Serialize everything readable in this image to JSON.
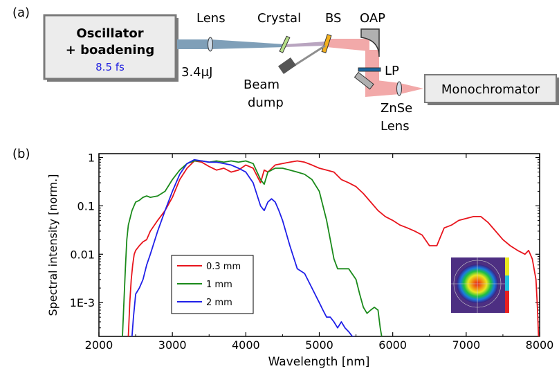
{
  "panel_a": {
    "panel_label": "(a)",
    "oscillator": {
      "line1": "Oscillator",
      "line2": "+ boadening",
      "pulse": "8.5 fs"
    },
    "lens_label": "Lens",
    "energy_label": "3.4μJ",
    "crystal_label": "Crystal",
    "bs_label": "BS",
    "oap_label": "OAP",
    "lp_label": "LP",
    "beam_dump": {
      "line1": "Beam",
      "line2": "dump"
    },
    "znse_lens": {
      "line1": "ZnSe",
      "line2": "Lens"
    },
    "monochromator_label": "Monochromator",
    "colors": {
      "pump_beam": "#7f9fb8",
      "mir_beam": "#f2a9a9",
      "crystal": "#b8e08a",
      "bs": "#f2b01e",
      "lp": "#1a66a0",
      "pulse_text": "#1f1fe0"
    }
  },
  "panel_b": {
    "panel_label": "(b)"
  },
  "chart_data": {
    "type": "line",
    "xlabel": "Wavelength [nm]",
    "ylabel": "Spectral intensity [norm.]",
    "xlim": [
      2000,
      8000
    ],
    "ylim": [
      0.0002,
      1.2
    ],
    "yscale": "log",
    "x_ticks": [
      2000,
      3000,
      4000,
      5000,
      6000,
      7000,
      8000
    ],
    "x_tick_labels": [
      "2000",
      "3000",
      "4000",
      "5000",
      "6000",
      "7000",
      "8000"
    ],
    "y_ticks": [
      1,
      0.1,
      0.01,
      0.001
    ],
    "y_tick_labels": [
      "1",
      "0.1",
      "0.01",
      "1E-3"
    ],
    "legend_position": "bottom-left",
    "inset": "beam-profile image (bottom-right)",
    "series": [
      {
        "name": "0.3 mm",
        "color": "#e8141c",
        "x": [
          2400,
          2420,
          2440,
          2460,
          2480,
          2500,
          2550,
          2600,
          2650,
          2700,
          2800,
          2900,
          3000,
          3100,
          3200,
          3300,
          3400,
          3500,
          3600,
          3700,
          3800,
          3900,
          4000,
          4100,
          4200,
          4250,
          4300,
          4400,
          4500,
          4600,
          4700,
          4800,
          4900,
          5000,
          5100,
          5200,
          5300,
          5400,
          5500,
          5600,
          5700,
          5800,
          5900,
          6000,
          6100,
          6200,
          6300,
          6400,
          6500,
          6600,
          6700,
          6800,
          6900,
          7000,
          7100,
          7200,
          7300,
          7400,
          7500,
          7600,
          7700,
          7800,
          7850,
          7900,
          7950,
          7970,
          7985,
          8000
        ],
        "y": [
          0.0002,
          0.001,
          0.003,
          0.006,
          0.01,
          0.012,
          0.015,
          0.018,
          0.02,
          0.03,
          0.05,
          0.08,
          0.15,
          0.35,
          0.6,
          0.85,
          0.8,
          0.65,
          0.55,
          0.6,
          0.5,
          0.55,
          0.7,
          0.6,
          0.3,
          0.55,
          0.5,
          0.7,
          0.75,
          0.8,
          0.85,
          0.8,
          0.7,
          0.6,
          0.55,
          0.5,
          0.35,
          0.3,
          0.25,
          0.18,
          0.12,
          0.08,
          0.06,
          0.05,
          0.04,
          0.035,
          0.03,
          0.025,
          0.015,
          0.015,
          0.035,
          0.04,
          0.05,
          0.055,
          0.06,
          0.06,
          0.045,
          0.03,
          0.02,
          0.015,
          0.012,
          0.01,
          0.012,
          0.008,
          0.003,
          0.0008,
          0.0002,
          0.0002
        ]
      },
      {
        "name": "1 mm",
        "color": "#1a8a1a",
        "x": [
          2320,
          2340,
          2360,
          2380,
          2400,
          2450,
          2500,
          2550,
          2600,
          2650,
          2700,
          2800,
          2900,
          3000,
          3100,
          3200,
          3300,
          3400,
          3500,
          3600,
          3700,
          3800,
          3900,
          4000,
          4100,
          4200,
          4250,
          4300,
          4400,
          4500,
          4600,
          4700,
          4800,
          4900,
          5000,
          5050,
          5100,
          5150,
          5200,
          5250,
          5300,
          5400,
          5500,
          5550,
          5600,
          5650,
          5700,
          5750,
          5800,
          5830,
          5850
        ],
        "y": [
          0.0002,
          0.001,
          0.005,
          0.02,
          0.04,
          0.08,
          0.12,
          0.13,
          0.15,
          0.16,
          0.15,
          0.16,
          0.2,
          0.35,
          0.55,
          0.75,
          0.85,
          0.85,
          0.8,
          0.85,
          0.8,
          0.85,
          0.8,
          0.85,
          0.75,
          0.35,
          0.28,
          0.5,
          0.6,
          0.6,
          0.55,
          0.5,
          0.45,
          0.35,
          0.2,
          0.1,
          0.05,
          0.02,
          0.008,
          0.005,
          0.005,
          0.005,
          0.003,
          0.0015,
          0.0008,
          0.0006,
          0.0007,
          0.0008,
          0.0007,
          0.0003,
          0.0002
        ]
      },
      {
        "name": "2 mm",
        "color": "#1f1fe8",
        "x": [
          2450,
          2470,
          2500,
          2550,
          2600,
          2650,
          2700,
          2800,
          2900,
          3000,
          3100,
          3200,
          3300,
          3400,
          3500,
          3600,
          3700,
          3800,
          3900,
          4000,
          4100,
          4200,
          4250,
          4300,
          4350,
          4400,
          4450,
          4500,
          4600,
          4700,
          4800,
          4900,
          5000,
          5050,
          5100,
          5150,
          5200,
          5250,
          5300,
          5350,
          5400,
          5450,
          5480
        ],
        "y": [
          0.0002,
          0.0005,
          0.0015,
          0.002,
          0.003,
          0.006,
          0.01,
          0.03,
          0.08,
          0.2,
          0.45,
          0.75,
          0.9,
          0.85,
          0.8,
          0.8,
          0.75,
          0.7,
          0.6,
          0.5,
          0.3,
          0.1,
          0.08,
          0.12,
          0.14,
          0.12,
          0.08,
          0.05,
          0.015,
          0.005,
          0.004,
          0.002,
          0.001,
          0.0007,
          0.0005,
          0.0005,
          0.0004,
          0.0003,
          0.0004,
          0.0003,
          0.00025,
          0.0002,
          0.0002
        ]
      }
    ]
  }
}
